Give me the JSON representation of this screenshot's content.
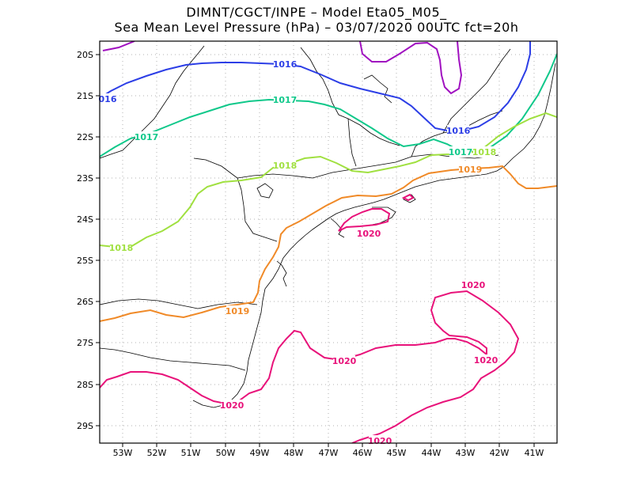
{
  "title": {
    "line1": "DIMNT/CGCT/INPE –  Model Eta05_M05_",
    "line2": "Sea Mean Level Pressure (hPa) – 03/07/2020 00UTC fct=20h"
  },
  "axes": {
    "x_ticks": [
      "53W",
      "52W",
      "51W",
      "50W",
      "49W",
      "48W",
      "47W",
      "46W",
      "45W",
      "44W",
      "43W",
      "42W",
      "41W"
    ],
    "y_ticks": [
      "20S",
      "21S",
      "22S",
      "23S",
      "24S",
      "25S",
      "26S",
      "27S",
      "28S",
      "29S"
    ]
  },
  "colors": {
    "c1016": "#2c3ee6",
    "c1017": "#10c88a",
    "c1018": "#a0e040",
    "c1019": "#f08a28",
    "c1020": "#e8127a",
    "c_purple": "#a010c0",
    "grid": "#b0b0b0",
    "coast": "#000000"
  },
  "contour_labels": {
    "l1016a": "1016",
    "l1016b": "016",
    "l1016c": "1016",
    "l1017a": "1017",
    "l1017b": "1017",
    "l1017c": "1017",
    "l1018a": "1018",
    "l1018b": "1018",
    "l1018c": "1018",
    "l1019a": "1019",
    "l1019b": "1019",
    "l1020a": "1020",
    "l1020b": "1020",
    "l1020c": "1020",
    "l1020d": "1020",
    "l1020e": "1020",
    "l1020f": "1020"
  }
}
